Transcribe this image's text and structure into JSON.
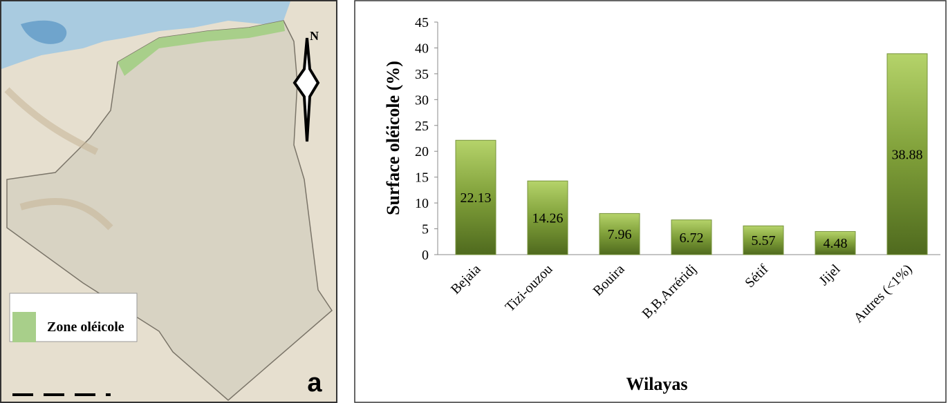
{
  "map": {
    "north": "N",
    "legend": "Zone oléicole",
    "panel_label": "a"
  },
  "chart_data": {
    "type": "bar",
    "x_label": "Wilayas",
    "y_label": "Surface oléicole (%)",
    "categories": [
      "Bejaia",
      "Tizi-ouzou",
      "Bouira",
      "B,B,Arréridj",
      "Sétif",
      "Jijel",
      "Autres (<1%)"
    ],
    "values": [
      22.13,
      14.26,
      7.96,
      6.72,
      5.57,
      4.48,
      38.88
    ],
    "color": "#77933c",
    "ylim": [
      0,
      45
    ],
    "yticks": [
      0,
      5,
      10,
      15,
      20,
      25,
      30,
      35,
      40,
      45
    ],
    "grid": false
  }
}
